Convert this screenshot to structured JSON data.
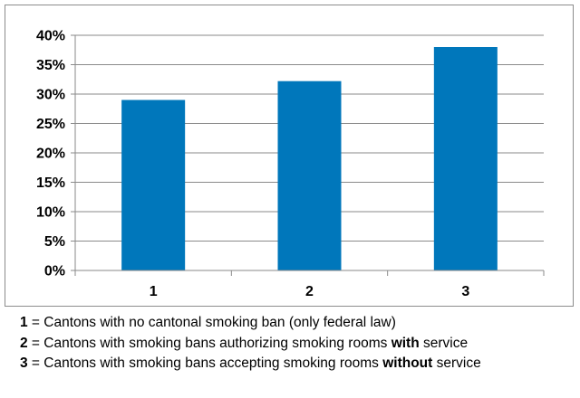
{
  "chart_data": {
    "type": "bar",
    "categories": [
      "1",
      "2",
      "3"
    ],
    "values": [
      29,
      32.2,
      38
    ],
    "ylim": [
      0,
      40
    ],
    "y_ticks": [
      "0%",
      "5%",
      "10%",
      "15%",
      "20%",
      "25%",
      "30%",
      "35%",
      "40%"
    ],
    "y_tick_values": [
      0,
      5,
      10,
      15,
      20,
      25,
      30,
      35,
      40
    ],
    "grid": true,
    "bar_color": "#0077BB",
    "title": "",
    "xlabel": "",
    "ylabel": ""
  },
  "legend": [
    {
      "key": "1",
      "sep": " = ",
      "text": "Cantons with no cantonal smoking ban (only federal law)",
      "bold": "",
      "after": ""
    },
    {
      "key": "2",
      "sep": " = ",
      "text": "Cantons with smoking bans authorizing smoking rooms ",
      "bold": "with",
      "after": " service"
    },
    {
      "key": "3",
      "sep": " = ",
      "text": "Cantons with smoking bans accepting smoking rooms ",
      "bold": "without",
      "after": " service"
    }
  ]
}
